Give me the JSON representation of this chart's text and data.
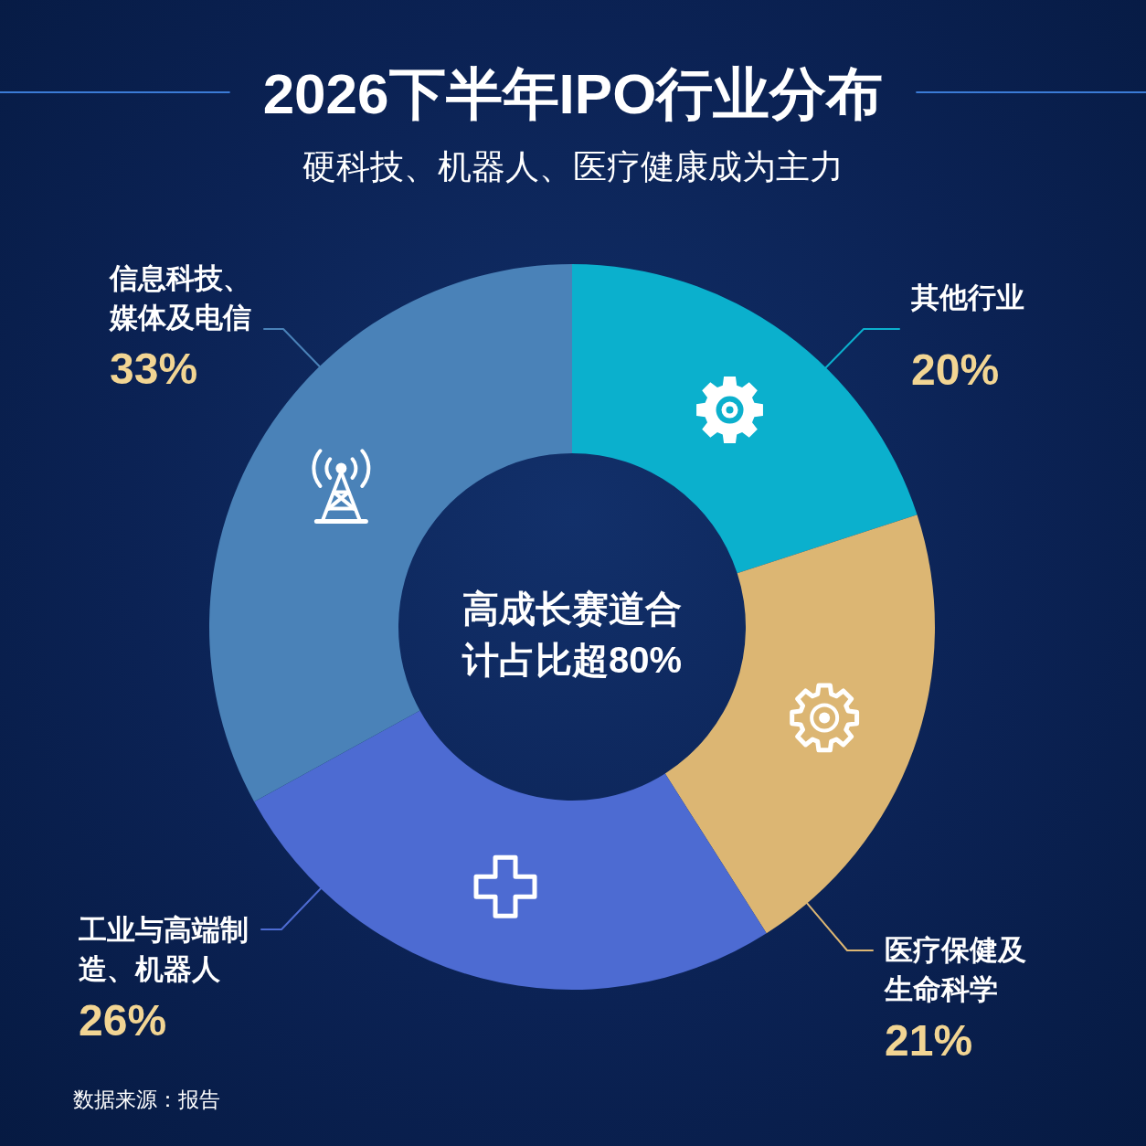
{
  "chart_data": {
    "type": "donut",
    "title": "2026下半年IPO行业分布",
    "subtitle": "硬科技、机器人、医疗健康成为主力",
    "categories": [
      "其他行业",
      "医疗保健及生命科学",
      "工业与高端制造、机器人",
      "信息科技、媒体及电信"
    ],
    "values": [
      20,
      21,
      26,
      33
    ],
    "colors": [
      "#0bb0cd",
      "#dcb673",
      "#4d6bd2",
      "#4a82b8"
    ],
    "value_labels": [
      "20%",
      "21%",
      "26%",
      "33%"
    ],
    "annotations": [
      "高成长赛道合计占比超80%",
      "数据来源：报告"
    ]
  }
}
